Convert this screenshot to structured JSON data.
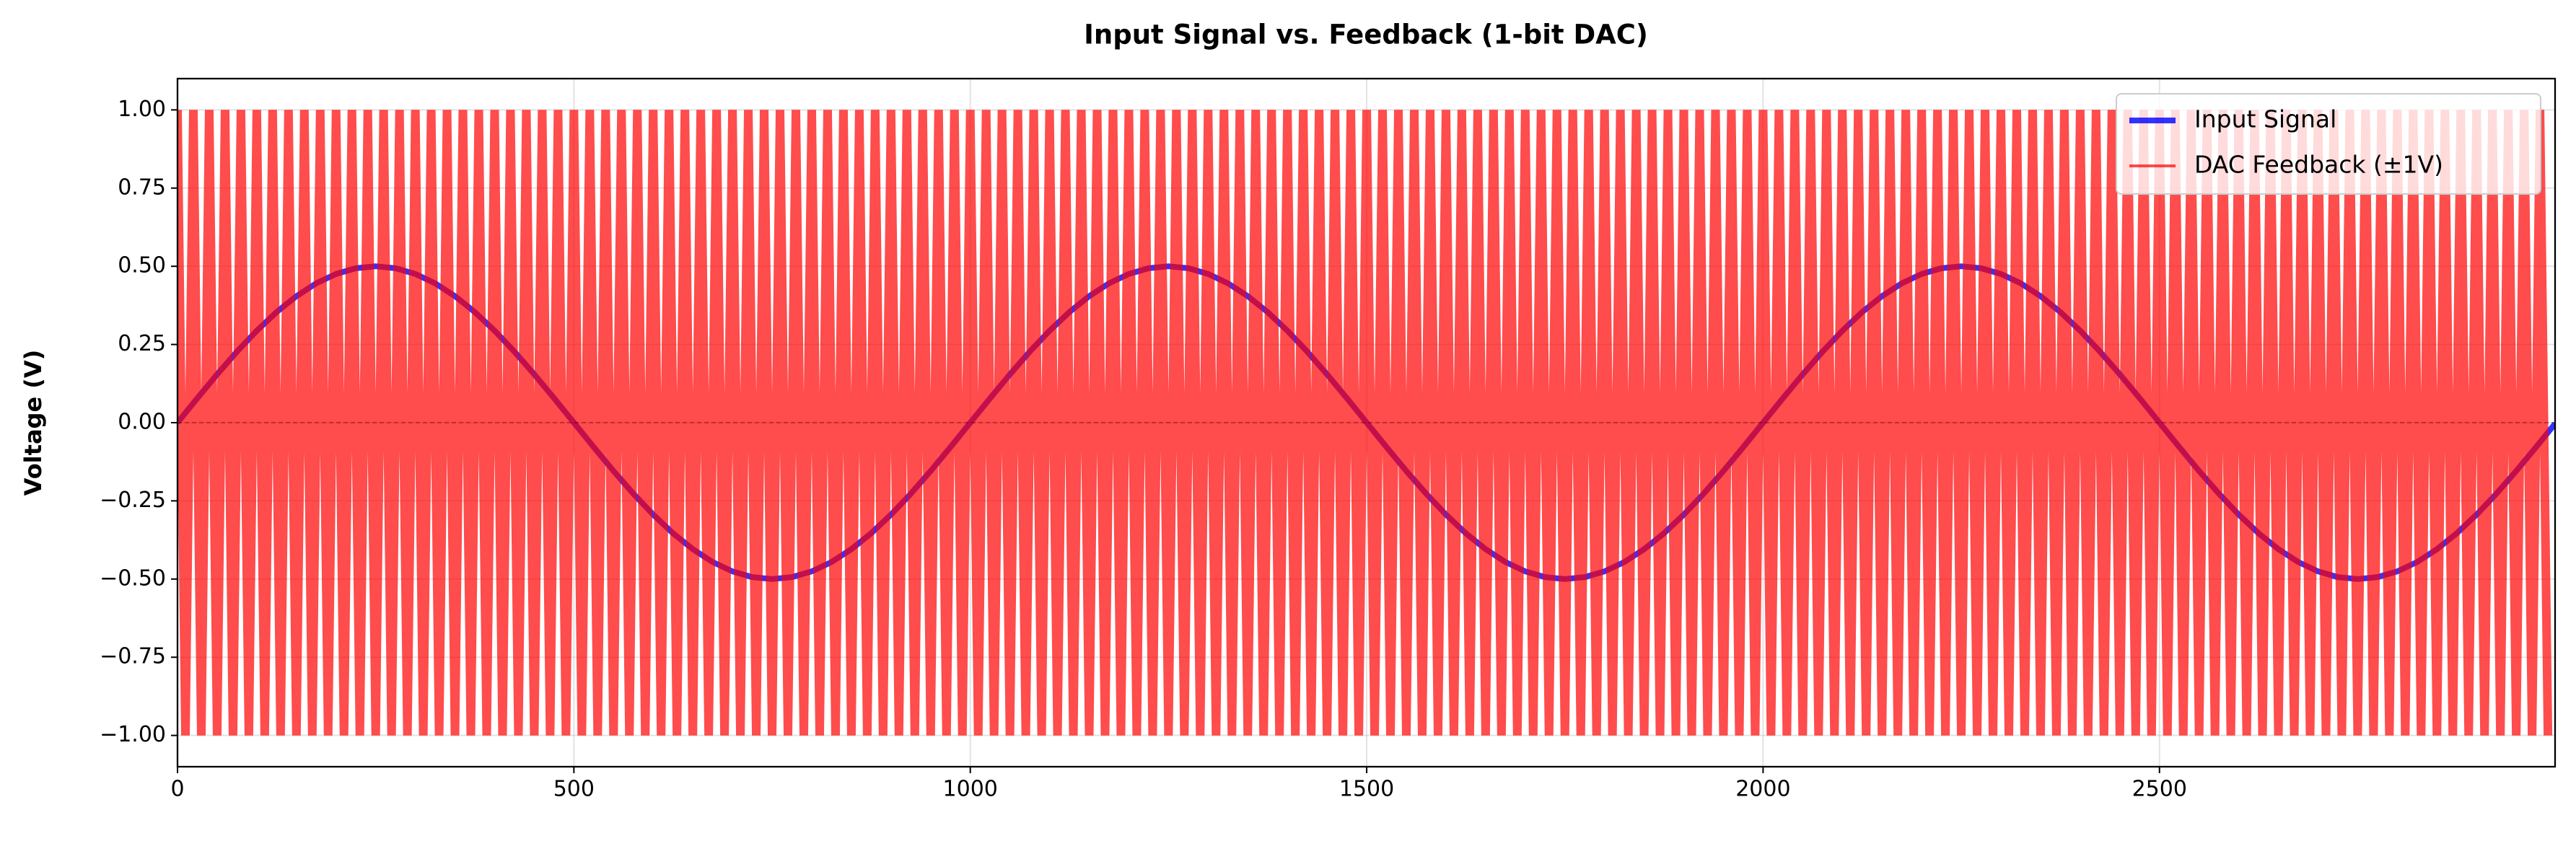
{
  "chart_data": {
    "type": "line",
    "title": "Input Signal vs. Feedback (1-bit DAC)",
    "ylabel": "Voltage (V)",
    "xlim": [
      0,
      2999
    ],
    "ylim": [
      -1.1,
      1.1
    ],
    "xticks": [
      0,
      500,
      1000,
      1500,
      2000,
      2500
    ],
    "yticks": [
      {
        "value": -1,
        "label": "−1.00"
      },
      {
        "value": -0.75,
        "label": "−0.75"
      },
      {
        "value": -0.5,
        "label": "−0.50"
      },
      {
        "value": -0.25,
        "label": "−0.25"
      },
      {
        "value": 0,
        "label": "0.00"
      },
      {
        "value": 0.25,
        "label": "0.25"
      },
      {
        "value": 0.5,
        "label": "0.50"
      },
      {
        "value": 0.75,
        "label": "0.75"
      },
      {
        "value": 1,
        "label": "1.00"
      }
    ],
    "grid": true,
    "hlines": [
      0
    ],
    "legend": "upper right",
    "series": [
      {
        "name": "Input Signal",
        "color": "#0000ff",
        "x": [
          0,
          25,
          50,
          75,
          100,
          125,
          150,
          175,
          200,
          225,
          250,
          275,
          300,
          325,
          350,
          375,
          400,
          425,
          450,
          475,
          500,
          525,
          550,
          575,
          600,
          625,
          650,
          675,
          700,
          725,
          750,
          775,
          800,
          825,
          850,
          875,
          900,
          925,
          950,
          975,
          1000,
          1025,
          1050,
          1075,
          1100,
          1125,
          1150,
          1175,
          1200,
          1225,
          1250,
          1275,
          1300,
          1325,
          1350,
          1375,
          1400,
          1425,
          1450,
          1475,
          1500,
          1525,
          1550,
          1575,
          1600,
          1625,
          1650,
          1675,
          1700,
          1725,
          1750,
          1775,
          1800,
          1825,
          1850,
          1875,
          1900,
          1925,
          1950,
          1975,
          2000,
          2025,
          2050,
          2075,
          2100,
          2125,
          2150,
          2175,
          2200,
          2225,
          2250,
          2275,
          2300,
          2325,
          2350,
          2375,
          2400,
          2425,
          2450,
          2475,
          2500,
          2525,
          2550,
          2575,
          2600,
          2625,
          2650,
          2675,
          2700,
          2725,
          2750,
          2775,
          2800,
          2825,
          2850,
          2875,
          2900,
          2925,
          2950,
          2975,
          2999
        ],
        "values": [
          0,
          0.0782,
          0.1545,
          0.227,
          0.2939,
          0.3536,
          0.4045,
          0.4455,
          0.4755,
          0.4938,
          0.5,
          0.4938,
          0.4755,
          0.4455,
          0.4045,
          0.3536,
          0.2939,
          0.227,
          0.1545,
          0.0782,
          0,
          -0.0782,
          -0.1545,
          -0.227,
          -0.2939,
          -0.3536,
          -0.4045,
          -0.4455,
          -0.4755,
          -0.4938,
          -0.5,
          -0.4938,
          -0.4755,
          -0.4455,
          -0.4045,
          -0.3536,
          -0.2939,
          -0.227,
          -0.1545,
          -0.0782,
          0,
          0.0782,
          0.1545,
          0.227,
          0.2939,
          0.3536,
          0.4045,
          0.4455,
          0.4755,
          0.4938,
          0.5,
          0.4938,
          0.4755,
          0.4455,
          0.4045,
          0.3536,
          0.2939,
          0.227,
          0.1545,
          0.0782,
          0,
          -0.0782,
          -0.1545,
          -0.227,
          -0.2939,
          -0.3536,
          -0.4045,
          -0.4455,
          -0.4755,
          -0.4938,
          -0.5,
          -0.4938,
          -0.4755,
          -0.4455,
          -0.4045,
          -0.3536,
          -0.2939,
          -0.227,
          -0.1545,
          -0.0782,
          0,
          0.0782,
          0.1545,
          0.227,
          0.2939,
          0.3536,
          0.4045,
          0.4455,
          0.4755,
          0.4938,
          0.5,
          0.4938,
          0.4755,
          0.4455,
          0.4045,
          0.3536,
          0.2939,
          0.227,
          0.1545,
          0.0782,
          0,
          -0.0782,
          -0.1545,
          -0.227,
          -0.2939,
          -0.3536,
          -0.4045,
          -0.4455,
          -0.4755,
          -0.4938,
          -0.5,
          -0.4938,
          -0.4755,
          -0.4455,
          -0.4045,
          -0.3536,
          -0.2939,
          -0.227,
          -0.1545,
          -0.0782,
          -0.0031
        ]
      },
      {
        "name": "DAC Feedback (±1V)",
        "color": "#ff0000",
        "x": [
          0,
          10,
          20,
          30,
          40,
          50,
          60,
          70,
          80,
          90,
          100,
          110,
          120,
          130,
          140,
          150,
          160,
          170,
          180,
          190,
          200,
          210,
          220,
          230,
          240,
          250,
          260,
          270,
          280,
          290,
          300,
          310,
          320,
          330,
          340,
          350,
          360,
          370,
          380,
          390,
          400,
          410,
          420,
          430,
          440,
          450,
          460,
          470,
          480,
          490,
          500,
          510,
          520,
          530,
          540,
          550,
          560,
          570,
          580,
          590,
          600,
          610,
          620,
          630,
          640,
          650,
          660,
          670,
          680,
          690,
          700,
          710,
          720,
          730,
          740,
          750,
          760,
          770,
          780,
          790,
          800,
          810,
          820,
          830,
          840,
          850,
          860,
          870,
          880,
          890,
          900,
          910,
          920,
          930,
          940,
          950,
          960,
          970,
          980,
          990,
          1000,
          1010,
          1020,
          1030,
          1040,
          1050,
          1060,
          1070,
          1080,
          1090,
          1100,
          1110,
          1120,
          1130,
          1140,
          1150,
          1160,
          1170,
          1180,
          1190,
          1200,
          1210,
          1220,
          1230,
          1240,
          1250,
          1260,
          1270,
          1280,
          1290,
          1300,
          1310,
          1320,
          1330,
          1340,
          1350,
          1360,
          1370,
          1380,
          1390,
          1400,
          1410,
          1420,
          1430,
          1440,
          1450,
          1460,
          1470,
          1480,
          1490,
          1500,
          1510,
          1520,
          1530,
          1540,
          1550,
          1560,
          1570,
          1580,
          1590,
          1600,
          1610,
          1620,
          1630,
          1640,
          1650,
          1660,
          1670,
          1680,
          1690,
          1700,
          1710,
          1720,
          1730,
          1740,
          1750,
          1760,
          1770,
          1780,
          1790,
          1800,
          1810,
          1820,
          1830,
          1840,
          1850,
          1860,
          1870,
          1880,
          1890,
          1900,
          1910,
          1920,
          1930,
          1940,
          1950,
          1960,
          1970,
          1980,
          1990,
          2000,
          2010,
          2020,
          2030,
          2040,
          2050,
          2060,
          2070,
          2080,
          2090,
          2100,
          2110,
          2120,
          2130,
          2140,
          2150,
          2160,
          2170,
          2180,
          2190,
          2200,
          2210,
          2220,
          2230,
          2240,
          2250,
          2260,
          2270,
          2280,
          2290,
          2300,
          2310,
          2320,
          2330,
          2340,
          2350,
          2360,
          2370,
          2380,
          2390,
          2400,
          2410,
          2420,
          2430,
          2440,
          2450,
          2460,
          2470,
          2480,
          2490,
          2500,
          2510,
          2520,
          2530,
          2540,
          2550,
          2560,
          2570,
          2580,
          2590,
          2600,
          2610,
          2620,
          2630,
          2640,
          2650,
          2660,
          2670,
          2680,
          2690,
          2700,
          2710,
          2720,
          2730,
          2740,
          2750,
          2760,
          2770,
          2780,
          2790,
          2800,
          2810,
          2820,
          2830,
          2840,
          2850,
          2860,
          2870,
          2880,
          2890,
          2900,
          2910,
          2920,
          2930,
          2940,
          2950,
          2960,
          2970,
          2980,
          2990
        ],
        "values": [
          1,
          -1,
          1,
          -1,
          1,
          -1,
          1,
          -1,
          1,
          -1,
          1,
          -1,
          1,
          -1,
          1,
          -1,
          1,
          -1,
          1,
          -1,
          1,
          -1,
          1,
          -1,
          1,
          -1,
          1,
          -1,
          1,
          -1,
          1,
          -1,
          1,
          -1,
          1,
          -1,
          1,
          -1,
          1,
          -1,
          1,
          -1,
          1,
          -1,
          1,
          -1,
          1,
          -1,
          1,
          -1,
          1,
          -1,
          1,
          -1,
          1,
          -1,
          1,
          -1,
          1,
          -1,
          1,
          -1,
          1,
          -1,
          1,
          -1,
          1,
          -1,
          1,
          -1,
          1,
          -1,
          1,
          -1,
          1,
          -1,
          1,
          -1,
          1,
          -1,
          1,
          -1,
          1,
          -1,
          1,
          -1,
          1,
          -1,
          1,
          -1,
          1,
          -1,
          1,
          -1,
          1,
          -1,
          1,
          -1,
          1,
          -1,
          1,
          -1,
          1,
          -1,
          1,
          -1,
          1,
          -1,
          1,
          -1,
          1,
          -1,
          1,
          -1,
          1,
          -1,
          1,
          -1,
          1,
          -1,
          1,
          -1,
          1,
          -1,
          1,
          -1,
          1,
          -1,
          1,
          -1,
          1,
          -1,
          1,
          -1,
          1,
          -1,
          1,
          -1,
          1,
          -1,
          1,
          -1,
          1,
          -1,
          1,
          -1,
          1,
          -1,
          1,
          -1,
          1,
          -1,
          1,
          -1,
          1,
          -1,
          1,
          -1,
          1,
          -1,
          1,
          -1,
          1,
          -1,
          1,
          -1,
          1,
          -1,
          1,
          -1,
          1,
          -1,
          1,
          -1,
          1,
          -1,
          1,
          -1,
          1,
          -1,
          1,
          -1,
          1,
          -1,
          1,
          -1,
          1,
          -1,
          1,
          -1,
          1,
          -1,
          1,
          -1,
          1,
          -1,
          1,
          -1,
          1,
          -1,
          1,
          -1,
          1,
          -1,
          1,
          -1,
          1,
          -1,
          1,
          -1,
          1,
          -1,
          1,
          -1,
          1,
          -1,
          1,
          -1,
          1,
          -1,
          1,
          -1,
          1,
          -1,
          1,
          -1,
          1,
          -1,
          1,
          -1,
          1,
          -1,
          1,
          -1,
          1,
          -1,
          1,
          -1,
          1,
          -1,
          1,
          -1,
          1,
          -1,
          1,
          -1,
          1,
          -1,
          1,
          -1,
          1,
          -1,
          1,
          -1,
          1,
          -1,
          1,
          -1,
          1,
          -1,
          1,
          -1,
          1,
          -1,
          1,
          -1,
          1,
          -1,
          1,
          -1,
          1,
          -1,
          1,
          -1,
          1,
          -1,
          1,
          -1,
          1,
          -1,
          1,
          -1,
          1,
          -1,
          1,
          -1,
          1,
          -1,
          1,
          -1,
          1,
          -1,
          1,
          -1,
          1,
          -1,
          1,
          -1,
          1,
          -1
        ]
      }
    ]
  }
}
